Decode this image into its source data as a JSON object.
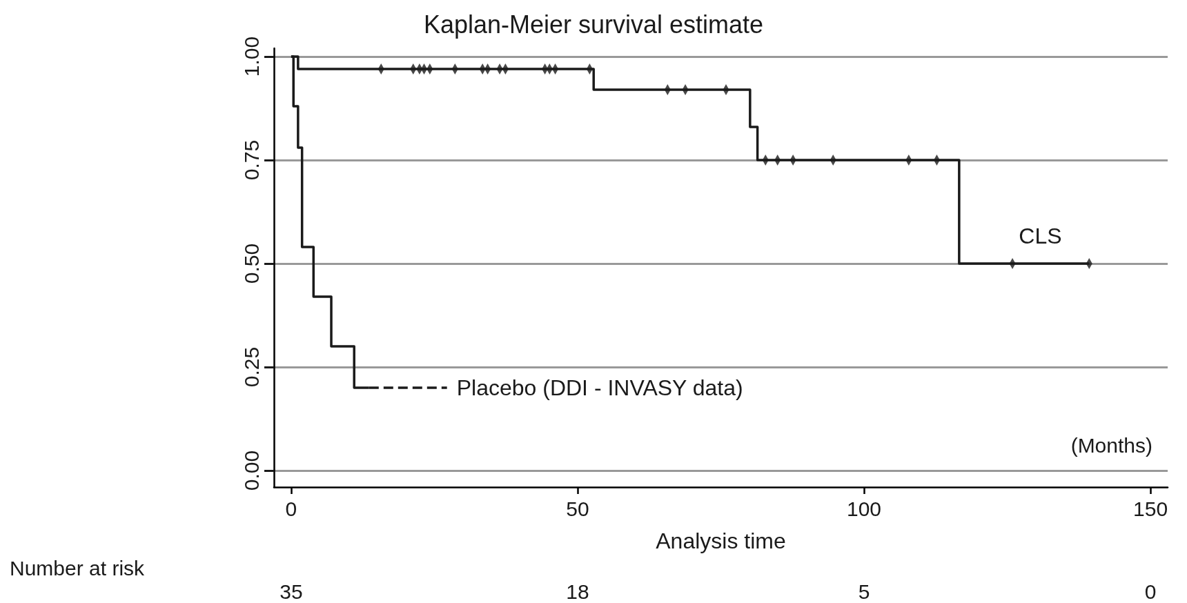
{
  "chart_data": {
    "type": "step",
    "title": "Kaplan-Meier survival estimate",
    "xlabel": "Analysis time",
    "xlim": [
      -3,
      153
    ],
    "xticks": [
      0,
      50,
      100,
      150
    ],
    "ylim": [
      -0.04,
      1.02
    ],
    "yticks": [
      {
        "value": 0,
        "label": "0.00"
      },
      {
        "value": 0.25,
        "label": "0.25"
      },
      {
        "value": 0.5,
        "label": "0.50"
      },
      {
        "value": 0.75,
        "label": "0.75"
      },
      {
        "value": 1,
        "label": "1.00"
      }
    ],
    "grid": "y",
    "legend": false,
    "line_style": "solid",
    "series": [
      {
        "name": "CLS",
        "color": "#1a1a1a",
        "x": [
          0,
          1.2,
          52.8,
          80.1,
          81.4,
          116.6,
          139.3
        ],
        "values": [
          1,
          0.97,
          0.92,
          0.83,
          0.75,
          0.5,
          0.5
        ]
      },
      {
        "color": "#1a1a1a",
        "x": [
          0,
          0.4,
          1.2,
          1.9,
          3.9,
          7.0,
          11.0,
          13.6
        ],
        "values": [
          1,
          0.88,
          0.78,
          0.54,
          0.42,
          0.3,
          0.2,
          0.2
        ]
      },
      {
        "type": "line",
        "name": "Placebo (DDI - INVASY data)",
        "color": "#1a1a1a",
        "line_style": "dashed",
        "x": [
          13.6,
          27.2
        ],
        "values": [
          0.2,
          0.2
        ]
      },
      {
        "type": "scatter",
        "marker": "diamond",
        "color": "#1a1a1a",
        "x": [
          15.7,
          21.3,
          22.4,
          23.2,
          24.2,
          28.6,
          33.4,
          34.3,
          36.4,
          37.4,
          44.3,
          45.1,
          46.1,
          52.1,
          65.7,
          68.8,
          75.9,
          82.8,
          84.9,
          87.6,
          94.6,
          107.8,
          112.7,
          125.9,
          139.3
        ],
        "values": [
          0.97,
          0.97,
          0.97,
          0.97,
          0.97,
          0.97,
          0.97,
          0.97,
          0.97,
          0.97,
          0.97,
          0.97,
          0.97,
          0.97,
          0.92,
          0.92,
          0.92,
          0.75,
          0.75,
          0.75,
          0.75,
          0.75,
          0.75,
          0.5,
          0.5
        ]
      }
    ],
    "annotations": [
      "(Months)",
      "Number at risk",
      "35",
      "18",
      "5",
      "0"
    ]
  }
}
